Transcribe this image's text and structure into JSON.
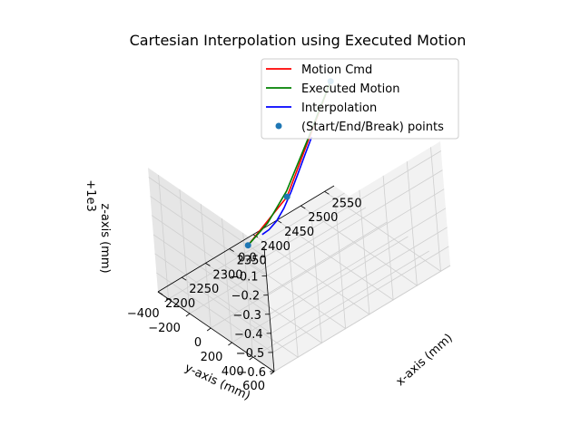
{
  "chart_data": {
    "type": "line",
    "projection": "3d",
    "title": "Cartesian Interpolation using Executed Motion",
    "xlabel": "x-axis (mm)",
    "ylabel": "y-axis (mm)",
    "zlabel": "z-axis (mm)",
    "z_offset_text": "+1e3",
    "x_ticks": [
      "2200",
      "2250",
      "2300",
      "2350",
      "2400",
      "2450",
      "2500",
      "2550"
    ],
    "y_ticks": [
      "600",
      "400",
      "200",
      "0",
      "−200",
      "−400"
    ],
    "z_ticks": [
      "0.0",
      "−0.1",
      "−0.2",
      "−0.3",
      "−0.4",
      "−0.5",
      "−0.6"
    ],
    "xlim": [
      2200,
      2570
    ],
    "ylim": [
      -500,
      600
    ],
    "zlim": [
      -0.6,
      0.05
    ],
    "grid": true,
    "legend_position": "top-right",
    "legend": [
      {
        "label": "Motion Cmd",
        "color": "#ff0000",
        "kind": "line"
      },
      {
        "label": "Executed Motion",
        "color": "#008000",
        "kind": "line"
      },
      {
        "label": "Interpolation",
        "color": "#0000ff",
        "kind": "line"
      },
      {
        "label": "(Start/End/Break) points",
        "color": "#1f77b4",
        "kind": "marker"
      }
    ],
    "series": [
      {
        "name": "Motion Cmd",
        "color": "#ff0000",
        "x": [
          2200,
          2370,
          2560
        ],
        "y": [
          440,
          20,
          -400
        ],
        "z": [
          0.0,
          -0.16,
          0.0
        ]
      },
      {
        "name": "Executed Motion",
        "color": "#008000",
        "x": [
          2200,
          2285,
          2370,
          2465,
          2560
        ],
        "y": [
          440,
          230,
          20,
          -190,
          -400
        ],
        "z": [
          0.0,
          -0.09,
          -0.13,
          -0.07,
          0.0
        ]
      },
      {
        "name": "Interpolation",
        "color": "#0000ff",
        "x": [
          2254,
          2280,
          2310,
          2340,
          2370,
          2400,
          2430,
          2460
        ],
        "y": [
          320,
          262,
          196,
          130,
          64,
          -2,
          -68,
          -134
        ],
        "z": [
          -0.07,
          -0.106,
          -0.13,
          -0.133,
          -0.118,
          -0.093,
          -0.065,
          -0.04
        ]
      },
      {
        "name": "(Start/End/Break) points",
        "color": "#1f77b4",
        "marker": true,
        "x": [
          2200,
          2370,
          2560
        ],
        "y": [
          440,
          20,
          -400
        ],
        "z": [
          0.0,
          -0.16,
          0.0
        ]
      }
    ]
  }
}
